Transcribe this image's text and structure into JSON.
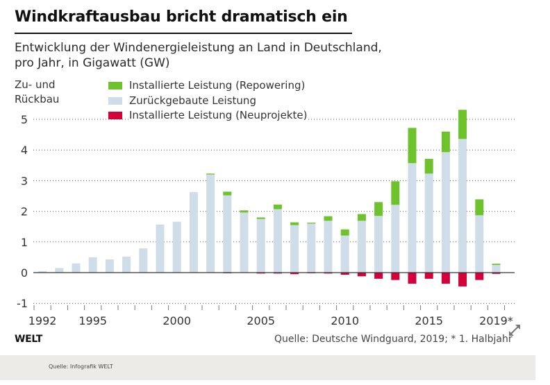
{
  "header": {
    "title": "Windkraftausbau bricht dramatisch ein",
    "subtitle_line1": "Entwicklung der Windenergieleistung an Land in Deutschland,",
    "subtitle_line2": "pro Jahr, in Gigawatt (GW)"
  },
  "footer": {
    "brand": "WELT",
    "source": "Quelle: Deutsche Windguard, 2019; * 1. Halbjahr",
    "credit": "Quelle: Infografik WELT",
    "expand_icon": "expand-arrows-icon"
  },
  "chart_data": {
    "type": "bar",
    "stacked": true,
    "title": "Windkraftausbau bricht dramatisch ein",
    "subtitle": "Entwicklung der Windenergieleistung an Land in Deutschland, pro Jahr, in Gigawatt (GW)",
    "ylabel_line1": "Zu- und",
    "ylabel_line2": "Rückbau",
    "xlabel": "",
    "ylim": [
      -1,
      5
    ],
    "yticks": [
      5,
      4,
      3,
      2,
      1,
      0,
      -1
    ],
    "grid": true,
    "legend_position": "top-left",
    "x": [
      1992,
      1993,
      1994,
      1995,
      1996,
      1997,
      1998,
      1999,
      2000,
      2001,
      2002,
      2003,
      2004,
      2005,
      2006,
      2007,
      2008,
      2009,
      2010,
      2011,
      2012,
      2013,
      2014,
      2015,
      2016,
      2017,
      2018,
      2019
    ],
    "xtick_labels": [
      {
        "year": 1992,
        "label": "1992"
      },
      {
        "year": 1995,
        "label": "1995"
      },
      {
        "year": 2000,
        "label": "2000"
      },
      {
        "year": 2005,
        "label": "2005"
      },
      {
        "year": 2010,
        "label": "2010"
      },
      {
        "year": 2015,
        "label": "2015"
      },
      {
        "year": 2019,
        "label": "2019*"
      }
    ],
    "series": [
      {
        "name": "Zurückgebaute Leistung",
        "legend_label": "Zurückgebaute Leistung",
        "color": "#cfdde9",
        "values": [
          0.05,
          0.15,
          0.3,
          0.5,
          0.43,
          0.52,
          0.79,
          1.57,
          1.66,
          2.63,
          3.2,
          2.52,
          1.96,
          1.75,
          2.07,
          1.55,
          1.6,
          1.69,
          1.21,
          1.69,
          1.85,
          2.21,
          3.57,
          3.23,
          3.93,
          4.36,
          1.87,
          0.25
        ]
      },
      {
        "name": "Installierte Leistung (Repowering)",
        "legend_label": "Installierte Leistung (Repowering)",
        "color": "#6ec22b",
        "values": [
          0,
          0,
          0,
          0,
          0,
          0,
          0,
          0,
          0,
          0,
          0.03,
          0.12,
          0.07,
          0.05,
          0.15,
          0.09,
          0.03,
          0.15,
          0.2,
          0.22,
          0.45,
          0.77,
          1.15,
          0.48,
          0.67,
          0.95,
          0.52,
          0.04
        ]
      },
      {
        "name": "Installierte Leistung (Neuprojekte)",
        "legend_label": "Installierte Leistung (Neuprojekte)",
        "color": "#d4003a",
        "values": [
          0,
          0,
          0,
          0,
          0,
          0,
          0,
          0,
          0,
          0,
          0,
          -0.02,
          -0.01,
          -0.03,
          -0.03,
          -0.05,
          -0.02,
          -0.03,
          -0.07,
          -0.12,
          -0.2,
          -0.24,
          -0.36,
          -0.2,
          -0.36,
          -0.45,
          -0.24,
          -0.04
        ]
      }
    ]
  }
}
